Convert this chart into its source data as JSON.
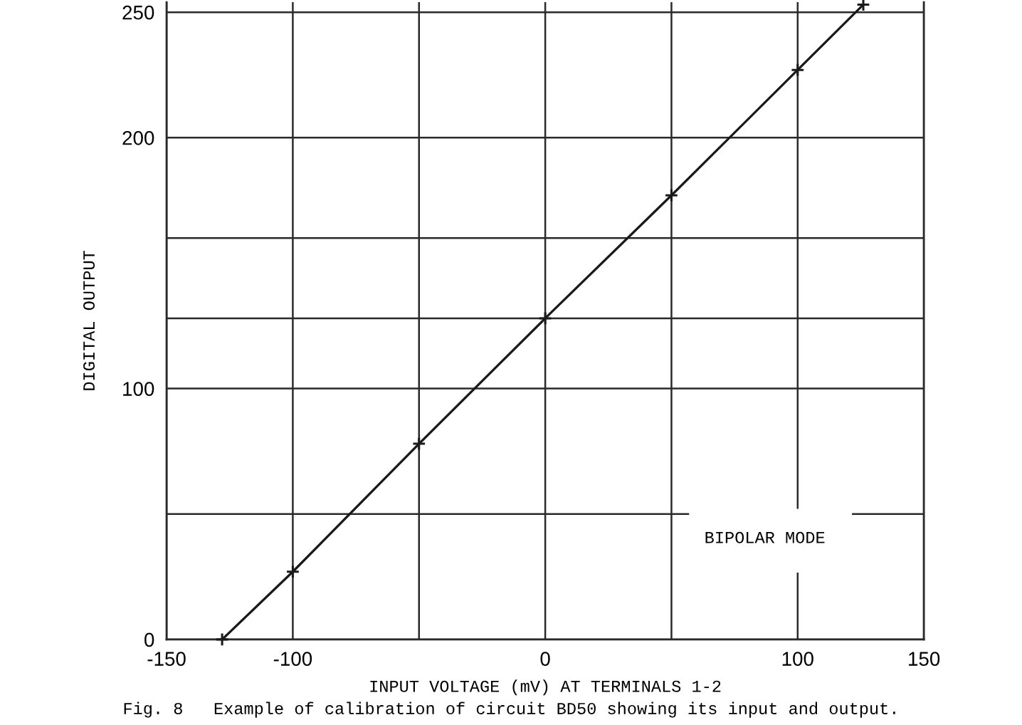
{
  "chart_data": {
    "type": "line",
    "xlabel": "INPUT VOLTAGE (mV) AT TERMINALS 1-2",
    "ylabel": "DIGITAL OUTPUT",
    "x": [
      -128,
      -100,
      -50,
      0,
      50,
      100,
      126
    ],
    "series": [
      {
        "color": "#1a1a1a",
        "values": [
          0,
          27,
          78,
          128,
          177,
          227,
          253
        ]
      }
    ],
    "xlim": [
      -150,
      150
    ],
    "xticks": [
      -150,
      -100,
      {
        "value": -50,
        "label": null
      },
      0,
      {
        "value": 50,
        "label": null
      },
      100,
      150
    ],
    "ylim": [
      0,
      254
    ],
    "yticks": [
      0,
      {
        "value": 50,
        "label": null
      },
      100,
      {
        "value": 128,
        "label": null
      },
      {
        "value": 160,
        "label": null
      },
      200,
      250
    ],
    "grid": true,
    "marker": "cross",
    "line_style": "solid",
    "annotations": [
      "BIPOLAR MODE",
      "Fig. 8   Example of calibration of circuit BD50 showing its input and output."
    ]
  }
}
